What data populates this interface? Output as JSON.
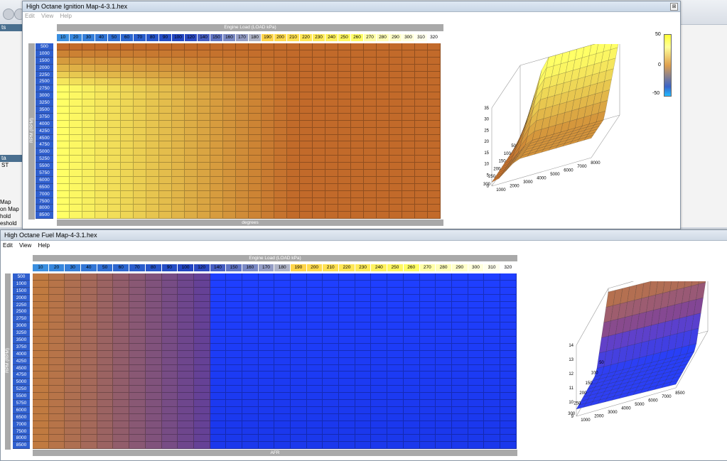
{
  "background_app": {
    "panel_tab_1": "ts",
    "panel_tab_2": "ta",
    "misc_text": "ST",
    "list_items": [
      "Map",
      "on Map",
      "hold",
      "eshold"
    ]
  },
  "ignition_window": {
    "title": "High Octane Ignition Map-4-3.1.hex",
    "close_glyph": "⊠",
    "menu": [
      "Edit",
      "View",
      "Help"
    ],
    "x_axis_label": "Engine Load (LOAD kPa)",
    "y_axis_label": "RPM (RPM)",
    "value_label": "degrees",
    "columns": [
      10,
      20,
      30,
      40,
      50,
      60,
      70,
      80,
      90,
      100,
      120,
      140,
      150,
      160,
      170,
      180,
      190,
      200,
      210,
      220,
      230,
      240,
      250,
      260,
      270,
      280,
      290,
      300,
      310,
      320
    ],
    "rows": [
      500,
      1000,
      1500,
      2000,
      2250,
      2500,
      2750,
      3000,
      3250,
      3500,
      3750,
      4000,
      4250,
      4500,
      4750,
      5000,
      5250,
      5500,
      5750,
      6000,
      6500,
      7000,
      7500,
      8000,
      8500
    ],
    "surface_y_ticks": [
      "35",
      "30",
      "25",
      "20",
      "15",
      "10",
      "5",
      "0"
    ],
    "surface_load_ticks": [
      "50",
      "100",
      "150",
      "200",
      "250",
      "300"
    ],
    "surface_rpm_ticks": [
      "1000",
      "2000",
      "3000",
      "4000",
      "5000",
      "6000",
      "7000",
      "8000"
    ],
    "colorbar_ticks": [
      "50",
      "0",
      "-50"
    ]
  },
  "fuel_window": {
    "title": "High Octane Fuel Map-4-3.1.hex",
    "menu": [
      "Edit",
      "View",
      "Help"
    ],
    "x_axis_label": "Engine Load (LOAD kPa)",
    "y_axis_label": "RPM (RPM)",
    "value_label": "AFR",
    "columns": [
      10,
      20,
      30,
      40,
      50,
      60,
      70,
      80,
      90,
      100,
      120,
      140,
      150,
      160,
      170,
      180,
      190,
      200,
      210,
      220,
      230,
      240,
      250,
      260,
      270,
      280,
      290,
      300,
      310,
      320
    ],
    "rows": [
      500,
      1000,
      1500,
      2000,
      2250,
      2500,
      2750,
      3000,
      3250,
      3500,
      3750,
      4000,
      4250,
      4500,
      4750,
      5000,
      5250,
      5500,
      5750,
      6000,
      6500,
      7000,
      7500,
      8000,
      8500
    ],
    "surface_y_ticks": [
      "14",
      "13",
      "12",
      "11",
      "10",
      "9"
    ],
    "surface_load_ticks": [
      "50",
      "100",
      "150",
      "200",
      "250",
      "300"
    ],
    "surface_rpm_ticks": [
      "1000",
      "2000",
      "3000",
      "4000",
      "5000",
      "6000",
      "7000",
      "8500"
    ]
  },
  "colors": {
    "ign_high": "#ffff66",
    "ign_low": "#c26a2a",
    "fuel_rich": "#c07a40",
    "fuel_lean": "#1f3fff",
    "row_header": "#2f5fcf"
  }
}
